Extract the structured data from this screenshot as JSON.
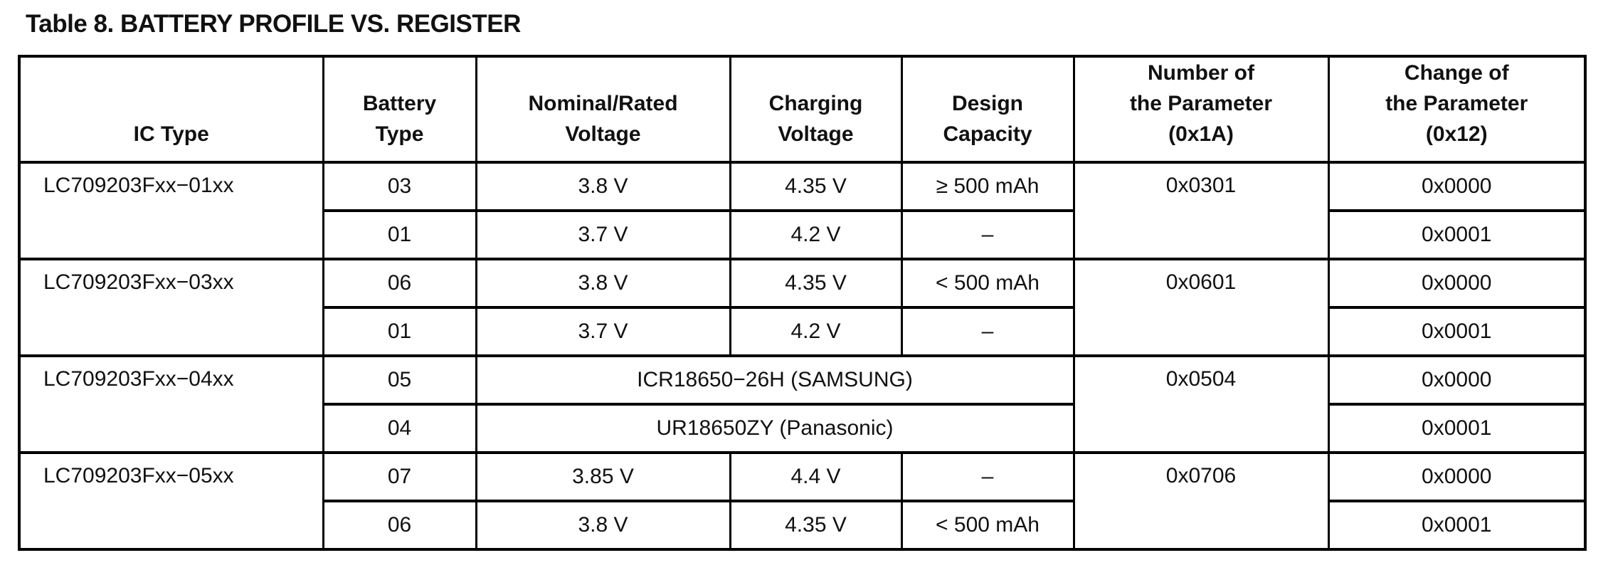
{
  "title": "Table 8. BATTERY PROFILE VS. REGISTER",
  "headers": {
    "ic_type": "IC Type",
    "battery_type": [
      "Battery",
      "Type"
    ],
    "nominal_voltage": [
      "Nominal/Rated",
      "Voltage"
    ],
    "charging_voltage": [
      "Charging",
      "Voltage"
    ],
    "design_capacity": [
      "Design",
      "Capacity"
    ],
    "number_param": [
      "Number of",
      "the Parameter",
      "(0x1A)"
    ],
    "change_param": [
      "Change of",
      "the Parameter",
      "(0x12)"
    ]
  },
  "groups": [
    {
      "ic": "LC709203Fxx−01xx",
      "number": "0x0301",
      "rows": [
        {
          "battery": "03",
          "nominal": "3.8 V",
          "charging": "4.35 V",
          "capacity": "≥ 500 mAh",
          "change": "0x0000"
        },
        {
          "battery": "01",
          "nominal": "3.7 V",
          "charging": "4.2 V",
          "capacity": "–",
          "change": "0x0001"
        }
      ]
    },
    {
      "ic": "LC709203Fxx−03xx",
      "number": "0x0601",
      "rows": [
        {
          "battery": "06",
          "nominal": "3.8 V",
          "charging": "4.35 V",
          "capacity": "< 500 mAh",
          "change": "0x0000"
        },
        {
          "battery": "01",
          "nominal": "3.7 V",
          "charging": "4.2 V",
          "capacity": "–",
          "change": "0x0001"
        }
      ]
    },
    {
      "ic": "LC709203Fxx−04xx",
      "number": "0x0504",
      "rows": [
        {
          "battery": "05",
          "spec": "ICR18650−26H (SAMSUNG)",
          "change": "0x0000"
        },
        {
          "battery": "04",
          "spec": "UR18650ZY (Panasonic)",
          "change": "0x0001"
        }
      ]
    },
    {
      "ic": "LC709203Fxx−05xx",
      "number": "0x0706",
      "rows": [
        {
          "battery": "07",
          "nominal": "3.85 V",
          "charging": "4.4 V",
          "capacity": "–",
          "change": "0x0000"
        },
        {
          "battery": "06",
          "nominal": "3.8 V",
          "charging": "4.35 V",
          "capacity": "< 500 mAh",
          "change": "0x0001"
        }
      ]
    }
  ]
}
